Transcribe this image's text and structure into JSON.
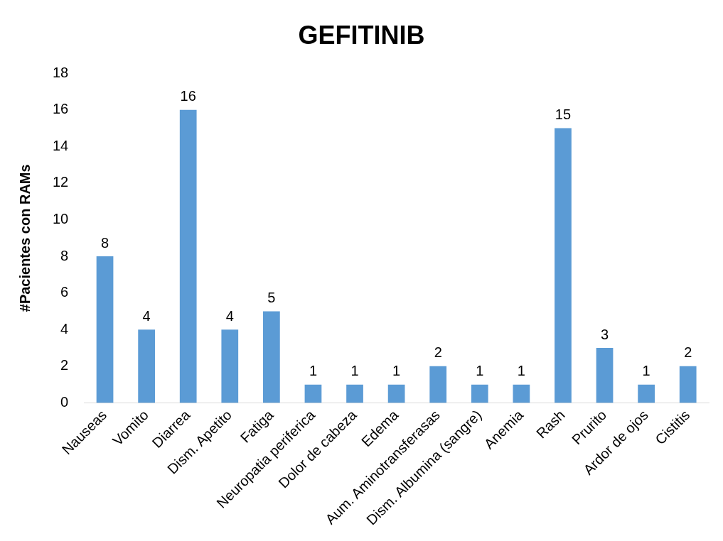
{
  "chart_data": {
    "type": "bar",
    "title": "GEFITINIB",
    "ylabel": "#Pacientes con RAMs",
    "categories": [
      "Nauseas",
      "Vomito",
      "Diarrea",
      "Dism. Apetito",
      "Fatiga",
      "Neuropatia periferica",
      "Dolor de cabeza",
      "Edema",
      "Aum. Aminotransferasas",
      "Dism. Albumina (sangre)",
      "Anemia",
      "Rash",
      "Prurito",
      "Ardor de ojos",
      "Cistitis"
    ],
    "values": [
      8,
      4,
      16,
      4,
      5,
      1,
      1,
      1,
      2,
      1,
      1,
      15,
      3,
      1,
      2
    ],
    "color": "#5b9bd5",
    "ylim": [
      0,
      18
    ],
    "yticks": [
      0,
      2,
      4,
      6,
      8,
      10,
      12,
      14,
      16,
      18
    ],
    "grid": false,
    "legend": false,
    "data_labels": true
  }
}
